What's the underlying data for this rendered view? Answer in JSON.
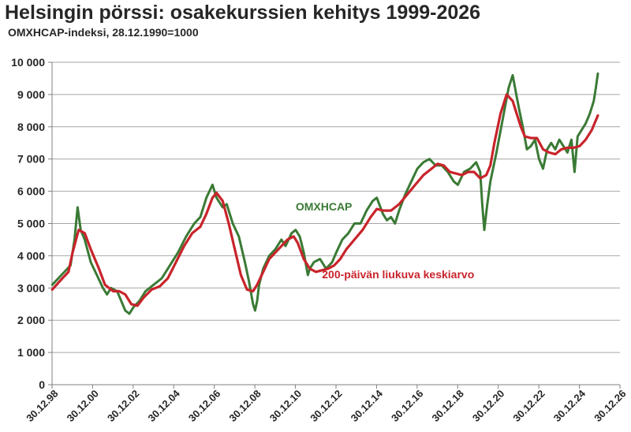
{
  "header": {
    "title": "Helsingin pörssi: osakekurssien kehitys 1999-2026",
    "subtitle": "OMXHCAP-indeksi, 28.12.1990=1000"
  },
  "chart_data": {
    "type": "line",
    "title": "Helsingin pörssi: osakekurssien kehitys 1999-2026",
    "subtitle": "OMXHCAP-indeksi, 28.12.1990=1000",
    "xlabel": "",
    "ylabel": "",
    "ylim": [
      0,
      10000
    ],
    "y_ticks": [
      0,
      1000,
      2000,
      3000,
      4000,
      5000,
      6000,
      7000,
      8000,
      9000,
      10000
    ],
    "y_tick_labels": [
      "0",
      "1 000",
      "2 000",
      "3 000",
      "4 000",
      "5 000",
      "6 000",
      "7 000",
      "8 000",
      "9 000",
      "10 000"
    ],
    "xlim": [
      1998.99,
      2026.99
    ],
    "x_ticks": [
      1998.99,
      2000.99,
      2002.99,
      2004.99,
      2006.99,
      2008.99,
      2010.99,
      2012.99,
      2014.99,
      2016.99,
      2018.99,
      2020.99,
      2022.99,
      2024.99,
      2026.99
    ],
    "x_tick_labels": [
      "30.12.98",
      "30.12.00",
      "30.12.02",
      "30.12.04",
      "30.12.06",
      "30.12.08",
      "30.12.10",
      "30.12.12",
      "30.12.14",
      "30.12.16",
      "30.12.18",
      "30.12.20",
      "30.12.22",
      "30.12.24",
      "30.12.26"
    ],
    "grid": "horizontal",
    "series": [
      {
        "name": "OMXHCAP",
        "color": "#3a7a35",
        "x": [
          1999.0,
          1999.3,
          1999.6,
          1999.9,
          2000.1,
          2000.25,
          2000.4,
          2000.6,
          2000.9,
          2001.2,
          2001.5,
          2001.7,
          2001.9,
          2002.2,
          2002.4,
          2002.6,
          2002.8,
          2003.0,
          2003.3,
          2003.6,
          2004.0,
          2004.4,
          2004.8,
          2005.2,
          2005.6,
          2006.0,
          2006.3,
          2006.6,
          2006.9,
          2007.1,
          2007.4,
          2007.6,
          2007.9,
          2008.2,
          2008.5,
          2008.7,
          2008.9,
          2009.0,
          2009.1,
          2009.2,
          2009.4,
          2009.7,
          2010.0,
          2010.3,
          2010.5,
          2010.8,
          2011.0,
          2011.2,
          2011.4,
          2011.6,
          2011.7,
          2011.9,
          2012.2,
          2012.5,
          2012.8,
          2013.0,
          2013.3,
          2013.6,
          2013.9,
          2014.2,
          2014.5,
          2014.8,
          2015.0,
          2015.3,
          2015.5,
          2015.7,
          2015.9,
          2016.1,
          2016.4,
          2016.7,
          2017.0,
          2017.3,
          2017.6,
          2017.9,
          2018.2,
          2018.5,
          2018.8,
          2019.0,
          2019.3,
          2019.6,
          2019.9,
          2020.1,
          2020.2,
          2020.3,
          2020.45,
          2020.6,
          2020.9,
          2021.2,
          2021.5,
          2021.7,
          2021.85,
          2022.0,
          2022.2,
          2022.4,
          2022.6,
          2022.8,
          2023.0,
          2023.2,
          2023.4,
          2023.6,
          2023.8,
          2024.0,
          2024.2,
          2024.4,
          2024.6,
          2024.75,
          2024.9,
          2025.1,
          2025.3,
          2025.5,
          2025.7,
          2025.8,
          2025.9
        ],
        "y": [
          3100,
          3300,
          3500,
          3700,
          4500,
          5500,
          4800,
          4500,
          3800,
          3400,
          3000,
          2800,
          3000,
          2900,
          2600,
          2300,
          2200,
          2400,
          2600,
          2900,
          3100,
          3300,
          3700,
          4100,
          4600,
          5000,
          5200,
          5800,
          6200,
          5800,
          5500,
          5600,
          5000,
          4600,
          3800,
          3200,
          2500,
          2300,
          2600,
          3100,
          3600,
          4000,
          4200,
          4500,
          4300,
          4700,
          4800,
          4600,
          4100,
          3400,
          3600,
          3800,
          3900,
          3600,
          3800,
          4100,
          4500,
          4700,
          5000,
          5000,
          5400,
          5700,
          5800,
          5300,
          5100,
          5200,
          5000,
          5400,
          5900,
          6300,
          6700,
          6900,
          7000,
          6800,
          6800,
          6600,
          6300,
          6200,
          6600,
          6700,
          6900,
          6600,
          5600,
          4800,
          5600,
          6300,
          7200,
          8200,
          9200,
          9600,
          9100,
          8600,
          8000,
          7300,
          7400,
          7600,
          7000,
          6700,
          7300,
          7500,
          7300,
          7600,
          7400,
          7200,
          7600,
          6600,
          7700,
          7900,
          8100,
          8400,
          8800,
          9200,
          9650
        ]
      },
      {
        "name": "200-päivän liukuva keskiarvo",
        "color": "#c8242b",
        "x": [
          1999.0,
          1999.5,
          1999.8,
          2000.0,
          2000.3,
          2000.6,
          2000.9,
          2001.3,
          2001.6,
          2002.0,
          2002.3,
          2002.6,
          2002.9,
          2003.2,
          2003.5,
          2003.9,
          2004.3,
          2004.7,
          2005.1,
          2005.5,
          2005.9,
          2006.3,
          2006.6,
          2006.9,
          2007.1,
          2007.4,
          2007.7,
          2008.0,
          2008.3,
          2008.6,
          2008.9,
          2009.1,
          2009.4,
          2009.7,
          2010.0,
          2010.3,
          2010.6,
          2010.9,
          2011.1,
          2011.4,
          2011.7,
          2012.0,
          2012.3,
          2012.6,
          2012.9,
          2013.2,
          2013.5,
          2013.9,
          2014.3,
          2014.7,
          2015.0,
          2015.3,
          2015.7,
          2016.1,
          2016.5,
          2016.9,
          2017.3,
          2017.7,
          2018.0,
          2018.3,
          2018.6,
          2018.9,
          2019.2,
          2019.5,
          2019.8,
          2020.1,
          2020.4,
          2020.6,
          2020.8,
          2021.1,
          2021.4,
          2021.7,
          2021.9,
          2022.1,
          2022.3,
          2022.6,
          2022.9,
          2023.2,
          2023.5,
          2023.8,
          2024.1,
          2024.4,
          2024.7,
          2025.0,
          2025.3,
          2025.6,
          2025.9
        ],
        "y": [
          2950,
          3300,
          3500,
          4100,
          4800,
          4700,
          4200,
          3600,
          3100,
          2900,
          2900,
          2800,
          2500,
          2450,
          2700,
          2950,
          3050,
          3300,
          3800,
          4300,
          4700,
          4900,
          5300,
          5800,
          5950,
          5700,
          5000,
          4200,
          3400,
          2950,
          2900,
          3100,
          3500,
          3900,
          4100,
          4300,
          4500,
          4600,
          4400,
          3900,
          3600,
          3500,
          3550,
          3600,
          3700,
          3900,
          4200,
          4500,
          4800,
          5200,
          5450,
          5400,
          5400,
          5600,
          5900,
          6200,
          6500,
          6700,
          6850,
          6800,
          6600,
          6550,
          6500,
          6600,
          6600,
          6400,
          6500,
          6800,
          7500,
          8400,
          9000,
          8800,
          8400,
          8000,
          7700,
          7650,
          7650,
          7300,
          7200,
          7150,
          7300,
          7350,
          7350,
          7400,
          7600,
          7900,
          8350
        ]
      }
    ],
    "annotations": [
      {
        "text": "OMXHCAP",
        "color": "#3a7a35",
        "x": 2011.0,
        "y": 5400
      },
      {
        "text": "200-päivän liukuva keskiarvo",
        "color": "#c8242b",
        "x": 2012.3,
        "y": 3300
      }
    ]
  }
}
